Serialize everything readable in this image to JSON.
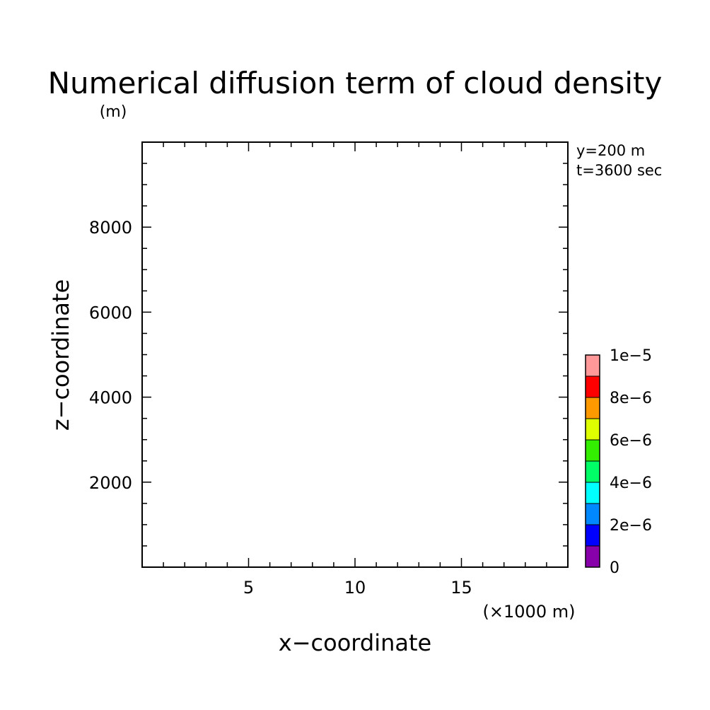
{
  "chart_data": {
    "type": "heatmap",
    "title": "Numerical diffusion term of cloud density",
    "xlabel": "x−coordinate",
    "ylabel": "z−coordinate",
    "x_unit": "(×1000 m)",
    "y_unit": "(m)",
    "annotations": [
      "y=200 m",
      "t=3600 sec"
    ],
    "xlim": [
      0,
      20
    ],
    "ylim": [
      0,
      10000
    ],
    "x_major_ticks": [
      5,
      10,
      15
    ],
    "x_tick_labels": [
      "5",
      "10",
      "15"
    ],
    "x_minor_tick_step": 1,
    "y_major_ticks": [
      2000,
      4000,
      6000,
      8000
    ],
    "y_tick_labels": [
      "2000",
      "4000",
      "6000",
      "8000"
    ],
    "y_minor_tick_step": 500,
    "data": [],
    "colorbar": {
      "min": 0,
      "max": 1e-05,
      "levels": [
        0,
        1e-06,
        2e-06,
        3e-06,
        4e-06,
        5e-06,
        6e-06,
        7e-06,
        8e-06,
        9e-06,
        1e-05
      ],
      "colors": [
        "#8800aa",
        "#0000ff",
        "#0088ff",
        "#00ffff",
        "#00ff66",
        "#33ee00",
        "#ddff00",
        "#ff9900",
        "#ff0000",
        "#ff9999"
      ],
      "tick_values": [
        0,
        2e-06,
        4e-06,
        6e-06,
        8e-06,
        1e-05
      ],
      "tick_labels": [
        "0",
        "2e−6",
        "4e−6",
        "6e−6",
        "8e−6",
        "1e−5"
      ]
    }
  }
}
